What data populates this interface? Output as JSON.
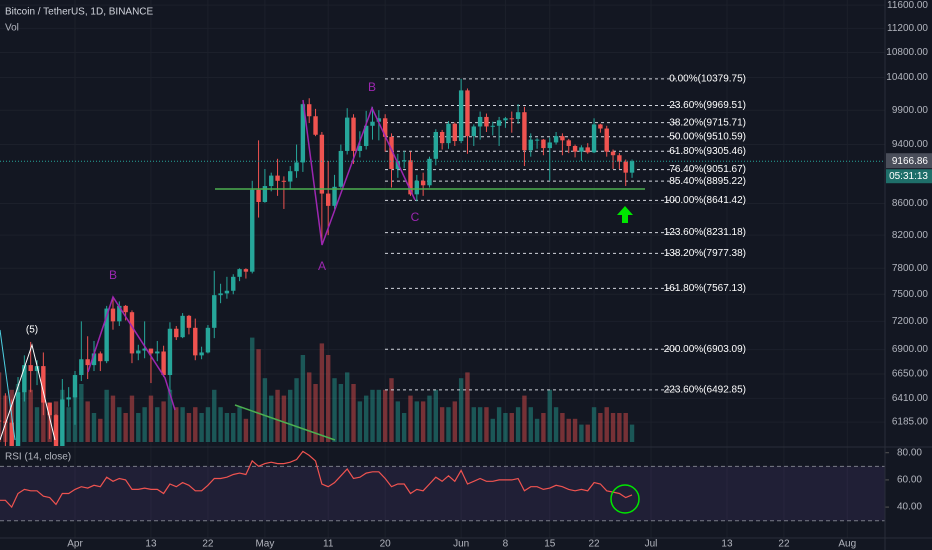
{
  "chart_data": {
    "type": "candlestick",
    "title": "Bitcoin / TetherUS, 1D, BINANCE",
    "volume_label": "Vol",
    "up_color": "#26a69a",
    "down_color": "#ef5350",
    "log": true,
    "grid": true,
    "ylim": [
      5975,
      11690
    ],
    "yticks": [
      {
        "value": 11600,
        "label": "11600.00"
      },
      {
        "value": 11200,
        "label": "11200.00"
      },
      {
        "value": 10800,
        "label": "10800.00"
      },
      {
        "value": 10400,
        "label": "10400.00"
      },
      {
        "value": 9900,
        "label": "9900.00"
      },
      {
        "value": 9400,
        "label": "9400.00"
      },
      {
        "value": 8600,
        "label": "8600.00"
      },
      {
        "value": 8200,
        "label": "8200.00"
      },
      {
        "value": 7800,
        "label": "7800.00"
      },
      {
        "value": 7500,
        "label": "7500.00"
      },
      {
        "value": 7200,
        "label": "7200.00"
      },
      {
        "value": 6900,
        "label": "6900.00"
      },
      {
        "value": 6650,
        "label": "6650.00"
      },
      {
        "value": 6410,
        "label": "6410.00"
      },
      {
        "value": 6185,
        "label": "6185.00"
      }
    ],
    "xticks": [
      {
        "value": "04-01",
        "label": "Apr"
      },
      {
        "value": "04-13",
        "label": "13"
      },
      {
        "value": "04-22",
        "label": "22"
      },
      {
        "value": "05-01",
        "label": "May"
      },
      {
        "value": "05-11",
        "label": "11"
      },
      {
        "value": "05-20",
        "label": "20"
      },
      {
        "value": "06-01",
        "label": "Jun"
      },
      {
        "value": "06-08",
        "label": "8"
      },
      {
        "value": "06-15",
        "label": "15"
      },
      {
        "value": "06-22",
        "label": "22"
      },
      {
        "value": "07-01",
        "label": "Jul"
      },
      {
        "value": "07-13",
        "label": "13"
      },
      {
        "value": "07-22",
        "label": "22"
      },
      {
        "value": "08-01",
        "label": "Aug"
      }
    ],
    "last_price": 9166.86,
    "countdown": "05:31:13",
    "dates": [
      "03-20",
      "03-21",
      "03-22",
      "03-23",
      "03-24",
      "03-25",
      "03-26",
      "03-27",
      "03-28",
      "03-29",
      "03-30",
      "03-31",
      "04-01",
      "04-02",
      "04-03",
      "04-04",
      "04-05",
      "04-06",
      "04-07",
      "04-08",
      "04-09",
      "04-10",
      "04-11",
      "04-12",
      "04-13",
      "04-14",
      "04-15",
      "04-16",
      "04-17",
      "04-18",
      "04-19",
      "04-20",
      "04-21",
      "04-22",
      "04-23",
      "04-24",
      "04-25",
      "04-26",
      "04-27",
      "04-28",
      "04-29",
      "04-30",
      "05-01",
      "05-02",
      "05-03",
      "05-04",
      "05-05",
      "05-06",
      "05-07",
      "05-08",
      "05-09",
      "05-10",
      "05-11",
      "05-12",
      "05-13",
      "05-14",
      "05-15",
      "05-16",
      "05-17",
      "05-18",
      "05-19",
      "05-20",
      "05-21",
      "05-22",
      "05-23",
      "05-24",
      "05-25",
      "05-26",
      "05-27",
      "05-28",
      "05-29",
      "05-30",
      "05-31",
      "06-01",
      "06-02",
      "06-03",
      "06-04",
      "06-05",
      "06-06",
      "06-07",
      "06-08",
      "06-09",
      "06-10",
      "06-11",
      "06-12",
      "06-13",
      "06-14",
      "06-15",
      "06-16",
      "06-17",
      "06-18",
      "06-19",
      "06-20",
      "06-21",
      "06-22",
      "06-23",
      "06-24",
      "06-25",
      "06-26",
      "06-27",
      "06-28"
    ],
    "ohlc": [
      [
        6200,
        6900,
        5670,
        6190
      ],
      [
        6190,
        6460,
        5860,
        6180
      ],
      [
        6180,
        6400,
        5760,
        5830
      ],
      [
        5830,
        6620,
        5690,
        6470
      ],
      [
        6470,
        6840,
        6380,
        6740
      ],
      [
        6740,
        6980,
        6470,
        6680
      ],
      [
        6680,
        6790,
        6540,
        6730
      ],
      [
        6730,
        6870,
        6250,
        6370
      ],
      [
        6370,
        6370,
        6030,
        6250
      ],
      [
        6250,
        6260,
        5870,
        5880
      ],
      [
        5880,
        6600,
        5860,
        6400
      ],
      [
        6400,
        6520,
        6330,
        6420
      ],
      [
        6420,
        6680,
        6160,
        6640
      ],
      [
        6640,
        7200,
        6580,
        6800
      ],
      [
        6800,
        7040,
        6600,
        6740
      ],
      [
        6740,
        6990,
        6680,
        6860
      ],
      [
        6860,
        6880,
        6680,
        6780
      ],
      [
        6780,
        7370,
        6760,
        7340
      ],
      [
        7340,
        7460,
        7110,
        7200
      ],
      [
        7200,
        7420,
        7150,
        7370
      ],
      [
        7370,
        7380,
        7210,
        7300
      ],
      [
        7300,
        7320,
        6760,
        6860
      ],
      [
        6860,
        6950,
        6790,
        6890
      ],
      [
        6890,
        7200,
        6810,
        6910
      ],
      [
        6910,
        6910,
        6560,
        6860
      ],
      [
        6860,
        6990,
        6780,
        6880
      ],
      [
        6880,
        6940,
        6620,
        6640
      ],
      [
        6640,
        7190,
        6470,
        7120
      ],
      [
        7120,
        7150,
        7000,
        7030
      ],
      [
        7030,
        7290,
        7020,
        7260
      ],
      [
        7260,
        7270,
        7060,
        7130
      ],
      [
        7130,
        7230,
        6790,
        6840
      ],
      [
        6840,
        6930,
        6800,
        6870
      ],
      [
        6870,
        7160,
        6860,
        7130
      ],
      [
        7130,
        7770,
        7020,
        7490
      ],
      [
        7490,
        7620,
        7400,
        7510
      ],
      [
        7510,
        7700,
        7450,
        7540
      ],
      [
        7540,
        7730,
        7500,
        7700
      ],
      [
        7700,
        7800,
        7650,
        7790
      ],
      [
        7790,
        7800,
        7680,
        7760
      ],
      [
        7760,
        8900,
        7740,
        8780
      ],
      [
        8780,
        9460,
        8420,
        8620
      ],
      [
        8620,
        9060,
        8610,
        8830
      ],
      [
        8830,
        9010,
        8760,
        8970
      ],
      [
        8970,
        9200,
        8700,
        8900
      ],
      [
        8900,
        8960,
        8530,
        8890
      ],
      [
        8890,
        9100,
        8790,
        9030
      ],
      [
        9030,
        9400,
        8940,
        9150
      ],
      [
        9150,
        10000,
        9020,
        9990
      ],
      [
        9990,
        10080,
        9710,
        9810
      ],
      [
        9810,
        9920,
        9520,
        9540
      ],
      [
        9540,
        9580,
        8100,
        8730
      ],
      [
        8730,
        9170,
        8200,
        8570
      ],
      [
        8570,
        8980,
        8530,
        8820
      ],
      [
        8820,
        9400,
        8800,
        9310
      ],
      [
        9310,
        9930,
        9260,
        9790
      ],
      [
        9790,
        9840,
        9130,
        9310
      ],
      [
        9310,
        9590,
        9220,
        9380
      ],
      [
        9380,
        9890,
        9330,
        9670
      ],
      [
        9670,
        9950,
        9470,
        9730
      ],
      [
        9730,
        9900,
        9460,
        9780
      ],
      [
        9780,
        9840,
        9300,
        9510
      ],
      [
        9510,
        9560,
        8810,
        9060
      ],
      [
        9060,
        9270,
        8940,
        9170
      ],
      [
        9170,
        9310,
        9070,
        9180
      ],
      [
        9180,
        9300,
        8700,
        8720
      ],
      [
        8720,
        8980,
        8630,
        8900
      ],
      [
        8900,
        9010,
        8700,
        8840
      ],
      [
        8840,
        9230,
        8810,
        9200
      ],
      [
        9200,
        9620,
        9110,
        9580
      ],
      [
        9580,
        9610,
        9330,
        9420
      ],
      [
        9420,
        9740,
        9340,
        9700
      ],
      [
        9700,
        9720,
        9380,
        9450
      ],
      [
        9450,
        10380,
        9420,
        10200
      ],
      [
        10200,
        10230,
        9270,
        9520
      ],
      [
        9520,
        9690,
        9380,
        9660
      ],
      [
        9660,
        9880,
        9470,
        9800
      ],
      [
        9800,
        9850,
        9580,
        9660
      ],
      [
        9660,
        9730,
        9530,
        9670
      ],
      [
        9670,
        9800,
        9380,
        9750
      ],
      [
        9750,
        9800,
        9640,
        9780
      ],
      [
        9780,
        9880,
        9570,
        9770
      ],
      [
        9770,
        9990,
        9700,
        9870
      ],
      [
        9870,
        9950,
        9100,
        9320
      ],
      [
        9320,
        9560,
        9230,
        9470
      ],
      [
        9470,
        9490,
        9340,
        9470
      ],
      [
        9470,
        9480,
        9250,
        9350
      ],
      [
        9350,
        9500,
        8900,
        9430
      ],
      [
        9430,
        9580,
        9400,
        9520
      ],
      [
        9520,
        9560,
        9250,
        9460
      ],
      [
        9460,
        9480,
        9280,
        9380
      ],
      [
        9380,
        9400,
        9220,
        9300
      ],
      [
        9300,
        9390,
        9170,
        9360
      ],
      [
        9360,
        9420,
        9270,
        9290
      ],
      [
        9290,
        9780,
        9280,
        9690
      ],
      [
        9690,
        9700,
        9570,
        9630
      ],
      [
        9630,
        9670,
        9230,
        9300
      ],
      [
        9300,
        9330,
        9060,
        9250
      ],
      [
        9250,
        9280,
        9060,
        9160
      ],
      [
        9160,
        9190,
        8830,
        9010
      ],
      [
        9010,
        9190,
        8940,
        9166.86
      ]
    ],
    "volume": [
      120,
      80,
      90,
      100,
      110,
      90,
      60,
      70,
      60,
      70,
      90,
      60,
      80,
      100,
      70,
      50,
      40,
      90,
      80,
      60,
      50,
      80,
      50,
      60,
      80,
      60,
      70,
      90,
      60,
      60,
      50,
      60,
      50,
      60,
      90,
      60,
      50,
      50,
      60,
      40,
      180,
      160,
      110,
      80,
      90,
      80,
      90,
      110,
      150,
      120,
      100,
      170,
      150,
      110,
      100,
      120,
      100,
      70,
      80,
      90,
      90,
      90,
      110,
      70,
      50,
      80,
      70,
      70,
      80,
      90,
      60,
      60,
      70,
      110,
      120,
      60,
      60,
      60,
      40,
      60,
      50,
      50,
      60,
      80,
      60,
      40,
      50,
      90,
      60,
      50,
      40,
      40,
      30,
      30,
      60,
      50,
      60,
      50,
      50,
      50,
      30
    ],
    "fib_levels": [
      {
        "value": 10379.75,
        "label": "0.00%(10379.75)"
      },
      {
        "value": 9969.51,
        "label": "23.60%(9969.51)"
      },
      {
        "value": 9715.71,
        "label": "38.20%(9715.71)"
      },
      {
        "value": 9510.59,
        "label": "50.00%(9510.59)"
      },
      {
        "value": 9305.46,
        "label": "61.80%(9305.46)"
      },
      {
        "value": 9051.67,
        "label": "76.40%(9051.67)"
      },
      {
        "value": 8895.22,
        "label": "85.40%(8895.22)"
      },
      {
        "value": 8641.42,
        "label": "100.00%(8641.42)"
      },
      {
        "value": 8231.18,
        "label": "123.60%(8231.18)"
      },
      {
        "value": 7977.38,
        "label": "138.20%(7977.38)"
      },
      {
        "value": 7567.13,
        "label": "161.80%(7567.13)"
      },
      {
        "value": 6903.09,
        "label": "200.00%(6903.09)"
      },
      {
        "value": 6492.85,
        "label": "223.60%(6492.85)"
      }
    ],
    "annotations": [
      "B",
      "(5)",
      "B",
      "A",
      "C"
    ],
    "rsi": {
      "title": "RSI (14, close)",
      "color": "#ef5350",
      "ylim": [
        18,
        82
      ],
      "yticks": [
        {
          "value": 80,
          "label": "80.00"
        },
        {
          "value": 60,
          "label": "60.00"
        },
        {
          "value": 40,
          "label": "40.00"
        }
      ],
      "levels": [
        70,
        30
      ],
      "values": [
        45,
        45,
        40,
        50,
        53,
        52,
        52,
        48,
        47,
        42,
        50,
        50,
        53,
        55,
        54,
        56,
        55,
        62,
        59,
        61,
        60,
        53,
        53,
        54,
        53,
        53,
        50,
        57,
        55,
        58,
        56,
        52,
        52,
        56,
        61,
        61,
        62,
        64,
        65,
        64,
        74,
        70,
        72,
        73,
        72,
        72,
        73,
        75,
        81,
        78,
        74,
        57,
        55,
        58,
        63,
        68,
        61,
        62,
        65,
        66,
        66,
        61,
        55,
        57,
        57,
        50,
        53,
        52,
        57,
        62,
        59,
        63,
        59,
        67,
        57,
        59,
        61,
        59,
        59,
        60,
        60,
        60,
        61,
        52,
        55,
        55,
        53,
        54,
        56,
        55,
        53,
        52,
        53,
        52,
        58,
        57,
        52,
        51,
        50,
        47,
        49
      ]
    }
  }
}
